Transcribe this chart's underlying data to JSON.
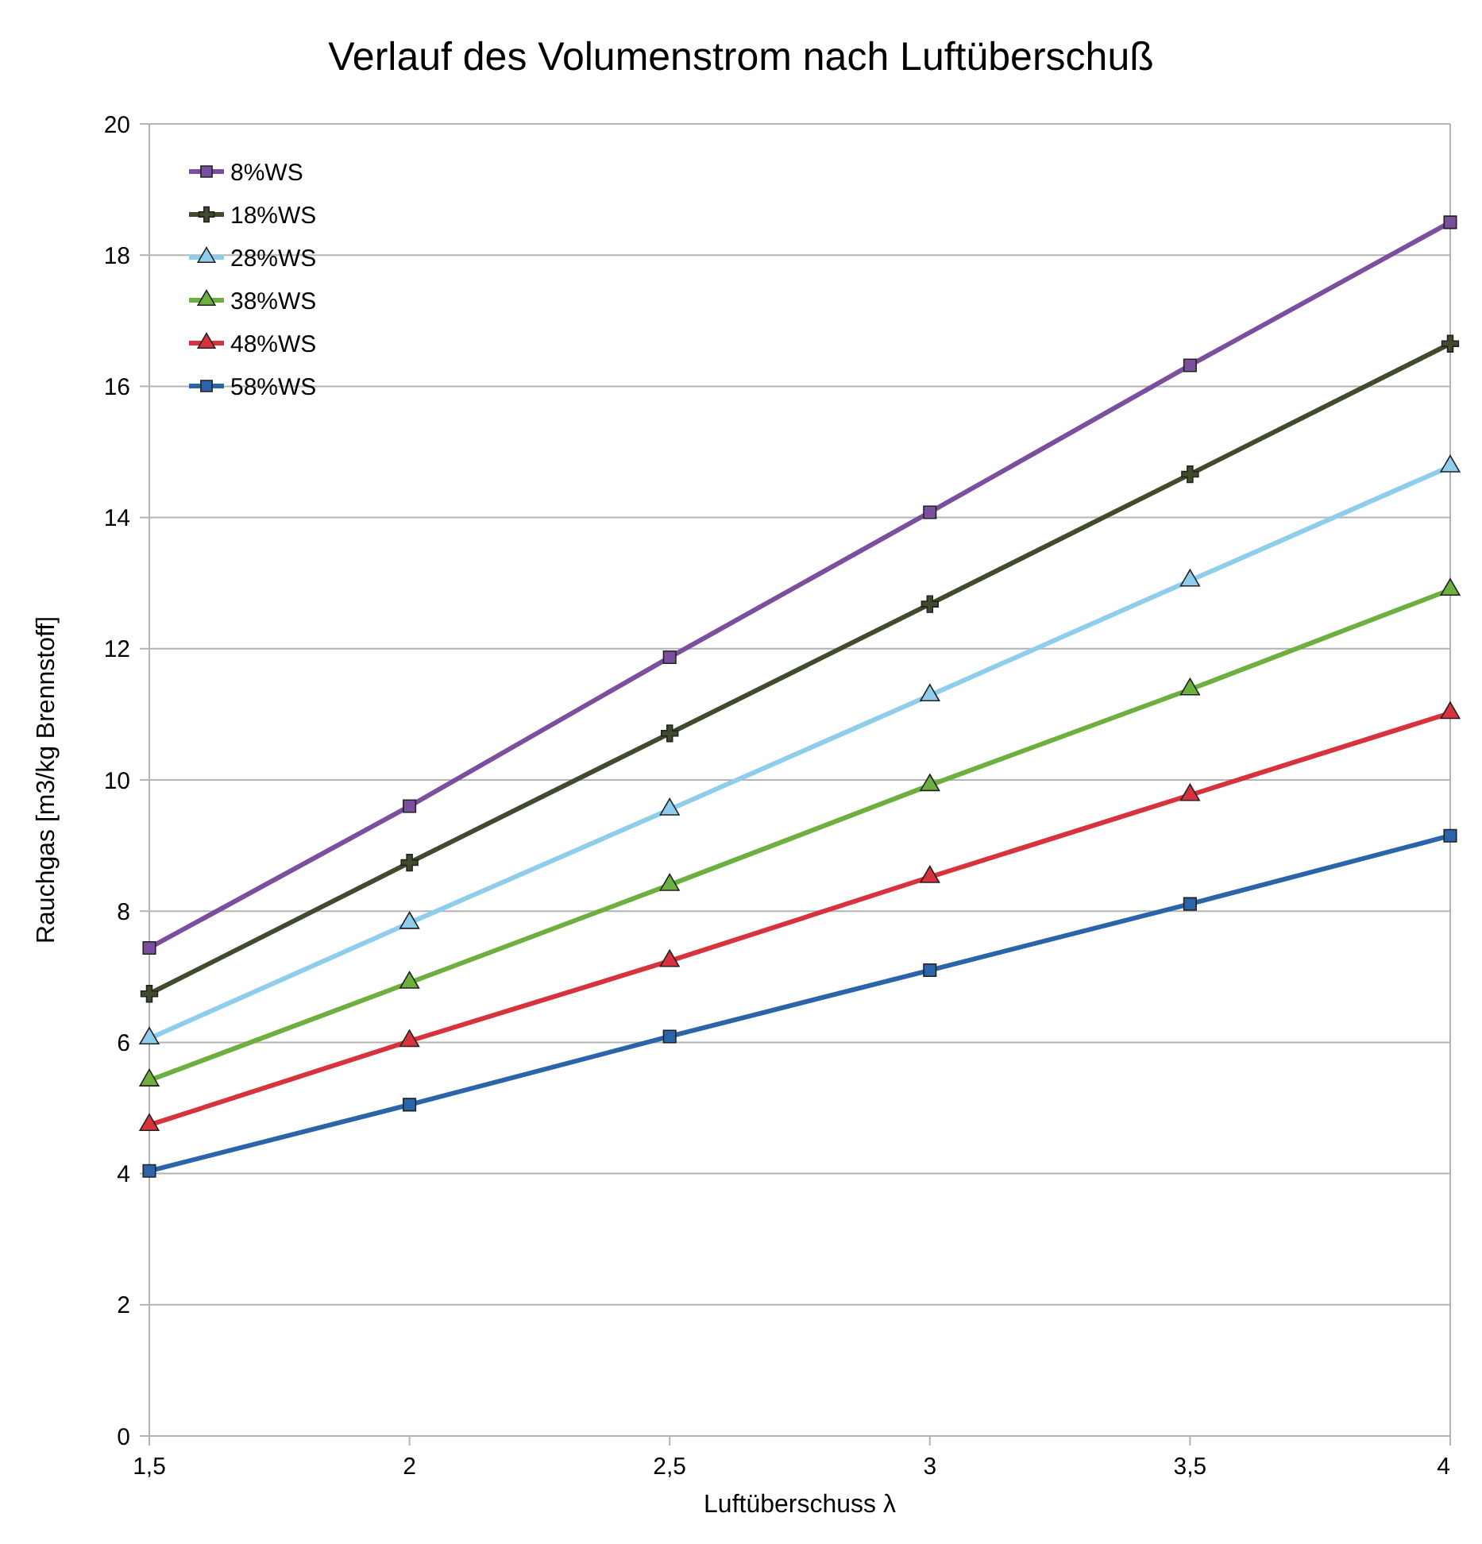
{
  "chart_data": {
    "type": "line",
    "title": "Verlauf des Volumenstrom nach Luftüberschuß",
    "xlabel": "Luftüberschuss λ",
    "ylabel": "Rauchgas [m3/kg Brennstoff]",
    "x": [
      1.5,
      2,
      2.5,
      3,
      3.5,
      4
    ],
    "xlim": [
      1.5,
      4
    ],
    "xticks": [
      {
        "value": 1.5,
        "label": "1,5"
      },
      2,
      {
        "value": 2.5,
        "label": "2,5"
      },
      3,
      {
        "value": 3.5,
        "label": "3,5"
      },
      4
    ],
    "ylim": [
      0,
      20
    ],
    "yticks": [
      0,
      2,
      4,
      6,
      8,
      10,
      12,
      14,
      16,
      18,
      20
    ],
    "grid": "y",
    "legend": "top left",
    "line_style": "solid",
    "series": [
      {
        "name": "8%WS",
        "color": "#7a4f9e",
        "marker": "square",
        "values": [
          7.44,
          9.6,
          11.87,
          14.08,
          16.32,
          18.5
        ]
      },
      {
        "name": "18%WS",
        "color": "#3f4b2c",
        "marker": "cross",
        "values": [
          6.74,
          8.74,
          10.71,
          12.68,
          14.66,
          16.65
        ]
      },
      {
        "name": "28%WS",
        "color": "#8ecdeb",
        "marker": "triangle",
        "values": [
          6.06,
          7.82,
          9.55,
          11.29,
          13.04,
          14.78
        ]
      },
      {
        "name": "38%WS",
        "color": "#6cb040",
        "marker": "triangle",
        "values": [
          5.42,
          6.91,
          8.4,
          9.92,
          11.38,
          12.9
        ]
      },
      {
        "name": "48%WS",
        "color": "#d8323d",
        "marker": "triangle",
        "values": [
          4.74,
          6.02,
          7.24,
          8.52,
          9.77,
          11.02
        ]
      },
      {
        "name": "58%WS",
        "color": "#2b64a8",
        "marker": "square",
        "values": [
          4.04,
          5.05,
          6.09,
          7.1,
          8.11,
          9.15
        ]
      }
    ]
  }
}
